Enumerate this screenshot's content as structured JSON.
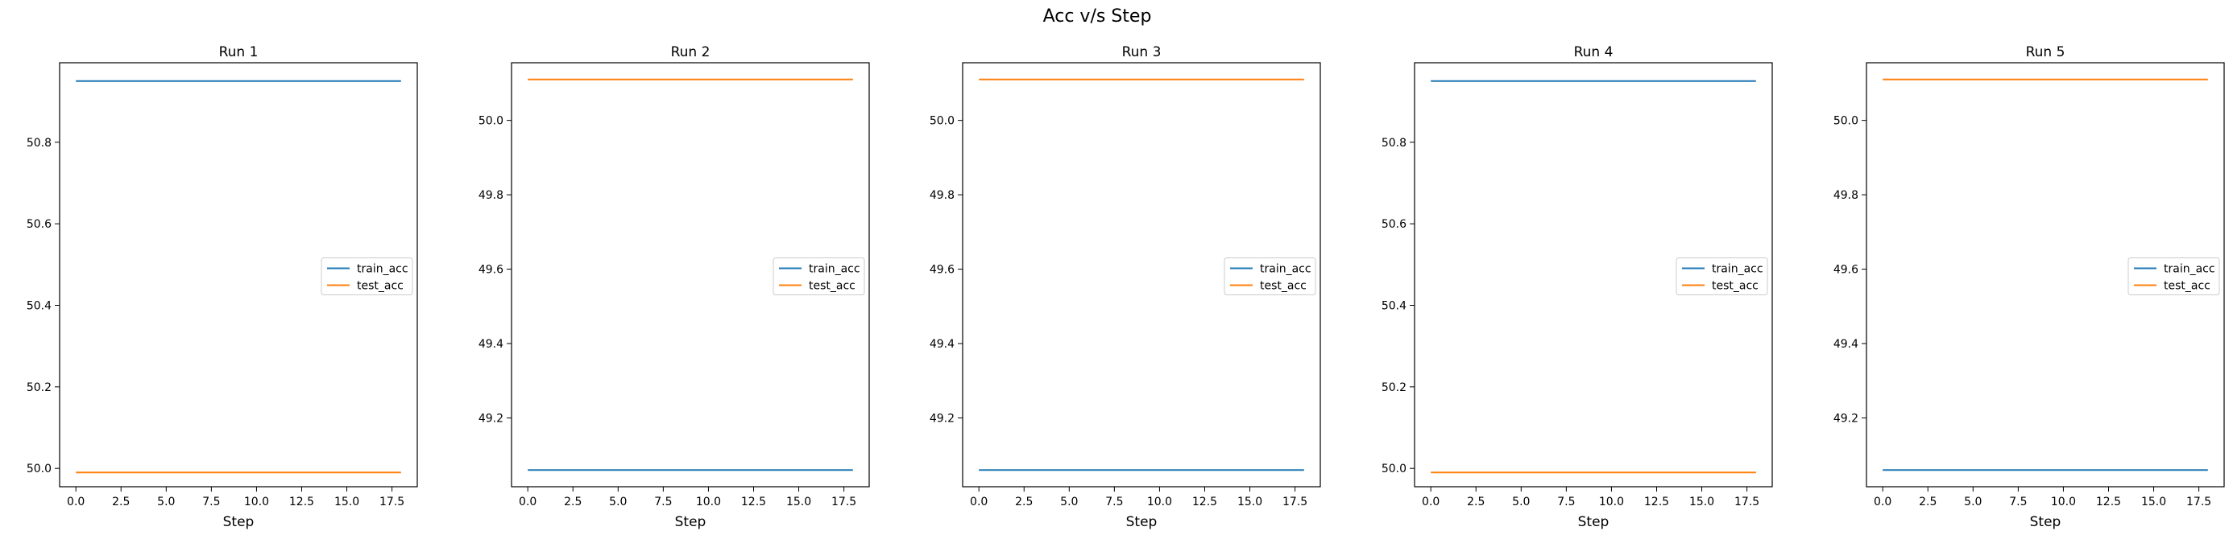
{
  "figure": {
    "title": "Acc v/s Step"
  },
  "chart_data": [
    {
      "type": "line",
      "title": "Run 1",
      "xlabel": "Step",
      "ylabel": "",
      "x": [
        0,
        1,
        2,
        3,
        4,
        5,
        6,
        7,
        8,
        9,
        10,
        11,
        12,
        13,
        14,
        15,
        16,
        17,
        18
      ],
      "xlim": [
        -0.9,
        18.9
      ],
      "ylim": [
        49.955,
        50.995
      ],
      "xticks": [
        0.0,
        2.5,
        5.0,
        7.5,
        10.0,
        12.5,
        15.0,
        17.5
      ],
      "xtick_labels": [
        "0.0",
        "2.5",
        "5.0",
        "7.5",
        "10.0",
        "12.5",
        "15.0",
        "17.5"
      ],
      "yticks": [
        50.0,
        50.2,
        50.4,
        50.6,
        50.8
      ],
      "ytick_labels": [
        "50.0",
        "50.2",
        "50.4",
        "50.6",
        "50.8"
      ],
      "series": [
        {
          "name": "train_acc",
          "color": "#1f77b4",
          "values": [
            50.95,
            50.95,
            50.95,
            50.95,
            50.95,
            50.95,
            50.95,
            50.95,
            50.95,
            50.95,
            50.95,
            50.95,
            50.95,
            50.95,
            50.95,
            50.95,
            50.95,
            50.95,
            50.95
          ]
        },
        {
          "name": "test_acc",
          "color": "#ff7f0e",
          "values": [
            49.99,
            49.99,
            49.99,
            49.99,
            49.99,
            49.99,
            49.99,
            49.99,
            49.99,
            49.99,
            49.99,
            49.99,
            49.99,
            49.99,
            49.99,
            49.99,
            49.99,
            49.99,
            49.99
          ]
        }
      ],
      "legend": "center-right",
      "grid": false
    },
    {
      "type": "line",
      "title": "Run 2",
      "xlabel": "Step",
      "ylabel": "",
      "x": [
        0,
        1,
        2,
        3,
        4,
        5,
        6,
        7,
        8,
        9,
        10,
        11,
        12,
        13,
        14,
        15,
        16,
        17,
        18
      ],
      "xlim": [
        -0.9,
        18.9
      ],
      "ylim": [
        49.015,
        50.155
      ],
      "xticks": [
        0.0,
        2.5,
        5.0,
        7.5,
        10.0,
        12.5,
        15.0,
        17.5
      ],
      "xtick_labels": [
        "0.0",
        "2.5",
        "5.0",
        "7.5",
        "10.0",
        "12.5",
        "15.0",
        "17.5"
      ],
      "yticks": [
        49.2,
        49.4,
        49.6,
        49.8,
        50.0
      ],
      "ytick_labels": [
        "49.2",
        "49.4",
        "49.6",
        "49.8",
        "50.0"
      ],
      "series": [
        {
          "name": "train_acc",
          "color": "#1f77b4",
          "values": [
            49.06,
            49.06,
            49.06,
            49.06,
            49.06,
            49.06,
            49.06,
            49.06,
            49.06,
            49.06,
            49.06,
            49.06,
            49.06,
            49.06,
            49.06,
            49.06,
            49.06,
            49.06,
            49.06
          ]
        },
        {
          "name": "test_acc",
          "color": "#ff7f0e",
          "values": [
            50.11,
            50.11,
            50.11,
            50.11,
            50.11,
            50.11,
            50.11,
            50.11,
            50.11,
            50.11,
            50.11,
            50.11,
            50.11,
            50.11,
            50.11,
            50.11,
            50.11,
            50.11,
            50.11
          ]
        }
      ],
      "legend": "center-right",
      "grid": false
    },
    {
      "type": "line",
      "title": "Run 3",
      "xlabel": "Step",
      "ylabel": "",
      "x": [
        0,
        1,
        2,
        3,
        4,
        5,
        6,
        7,
        8,
        9,
        10,
        11,
        12,
        13,
        14,
        15,
        16,
        17,
        18
      ],
      "xlim": [
        -0.9,
        18.9
      ],
      "ylim": [
        49.015,
        50.155
      ],
      "xticks": [
        0.0,
        2.5,
        5.0,
        7.5,
        10.0,
        12.5,
        15.0,
        17.5
      ],
      "xtick_labels": [
        "0.0",
        "2.5",
        "5.0",
        "7.5",
        "10.0",
        "12.5",
        "15.0",
        "17.5"
      ],
      "yticks": [
        49.2,
        49.4,
        49.6,
        49.8,
        50.0
      ],
      "ytick_labels": [
        "49.2",
        "49.4",
        "49.6",
        "49.8",
        "50.0"
      ],
      "series": [
        {
          "name": "train_acc",
          "color": "#1f77b4",
          "values": [
            49.06,
            49.06,
            49.06,
            49.06,
            49.06,
            49.06,
            49.06,
            49.06,
            49.06,
            49.06,
            49.06,
            49.06,
            49.06,
            49.06,
            49.06,
            49.06,
            49.06,
            49.06,
            49.06
          ]
        },
        {
          "name": "test_acc",
          "color": "#ff7f0e",
          "values": [
            50.11,
            50.11,
            50.11,
            50.11,
            50.11,
            50.11,
            50.11,
            50.11,
            50.11,
            50.11,
            50.11,
            50.11,
            50.11,
            50.11,
            50.11,
            50.11,
            50.11,
            50.11,
            50.11
          ]
        }
      ],
      "legend": "center-right",
      "grid": false
    },
    {
      "type": "line",
      "title": "Run 4",
      "xlabel": "Step",
      "ylabel": "",
      "x": [
        0,
        1,
        2,
        3,
        4,
        5,
        6,
        7,
        8,
        9,
        10,
        11,
        12,
        13,
        14,
        15,
        16,
        17,
        18
      ],
      "xlim": [
        -0.9,
        18.9
      ],
      "ylim": [
        49.955,
        50.995
      ],
      "xticks": [
        0.0,
        2.5,
        5.0,
        7.5,
        10.0,
        12.5,
        15.0,
        17.5
      ],
      "xtick_labels": [
        "0.0",
        "2.5",
        "5.0",
        "7.5",
        "10.0",
        "12.5",
        "15.0",
        "17.5"
      ],
      "yticks": [
        50.0,
        50.2,
        50.4,
        50.6,
        50.8
      ],
      "ytick_labels": [
        "50.0",
        "50.2",
        "50.4",
        "50.6",
        "50.8"
      ],
      "series": [
        {
          "name": "train_acc",
          "color": "#1f77b4",
          "values": [
            50.95,
            50.95,
            50.95,
            50.95,
            50.95,
            50.95,
            50.95,
            50.95,
            50.95,
            50.95,
            50.95,
            50.95,
            50.95,
            50.95,
            50.95,
            50.95,
            50.95,
            50.95,
            50.95
          ]
        },
        {
          "name": "test_acc",
          "color": "#ff7f0e",
          "values": [
            49.99,
            49.99,
            49.99,
            49.99,
            49.99,
            49.99,
            49.99,
            49.99,
            49.99,
            49.99,
            49.99,
            49.99,
            49.99,
            49.99,
            49.99,
            49.99,
            49.99,
            49.99,
            49.99
          ]
        }
      ],
      "legend": "center-right",
      "grid": false
    },
    {
      "type": "line",
      "title": "Run 5",
      "xlabel": "Step",
      "ylabel": "",
      "x": [
        0,
        1,
        2,
        3,
        4,
        5,
        6,
        7,
        8,
        9,
        10,
        11,
        12,
        13,
        14,
        15,
        16,
        17,
        18
      ],
      "xlim": [
        -0.9,
        18.9
      ],
      "ylim": [
        49.015,
        50.155
      ],
      "xticks": [
        0.0,
        2.5,
        5.0,
        7.5,
        10.0,
        12.5,
        15.0,
        17.5
      ],
      "xtick_labels": [
        "0.0",
        "2.5",
        "5.0",
        "7.5",
        "10.0",
        "12.5",
        "15.0",
        "17.5"
      ],
      "yticks": [
        49.2,
        49.4,
        49.6,
        49.8,
        50.0
      ],
      "ytick_labels": [
        "49.2",
        "49.4",
        "49.6",
        "49.8",
        "50.0"
      ],
      "series": [
        {
          "name": "train_acc",
          "color": "#1f77b4",
          "values": [
            49.06,
            49.06,
            49.06,
            49.06,
            49.06,
            49.06,
            49.06,
            49.06,
            49.06,
            49.06,
            49.06,
            49.06,
            49.06,
            49.06,
            49.06,
            49.06,
            49.06,
            49.06,
            49.06
          ]
        },
        {
          "name": "test_acc",
          "color": "#ff7f0e",
          "values": [
            50.11,
            50.11,
            50.11,
            50.11,
            50.11,
            50.11,
            50.11,
            50.11,
            50.11,
            50.11,
            50.11,
            50.11,
            50.11,
            50.11,
            50.11,
            50.11,
            50.11,
            50.11,
            50.11
          ]
        }
      ],
      "legend": "center-right",
      "grid": false
    }
  ]
}
